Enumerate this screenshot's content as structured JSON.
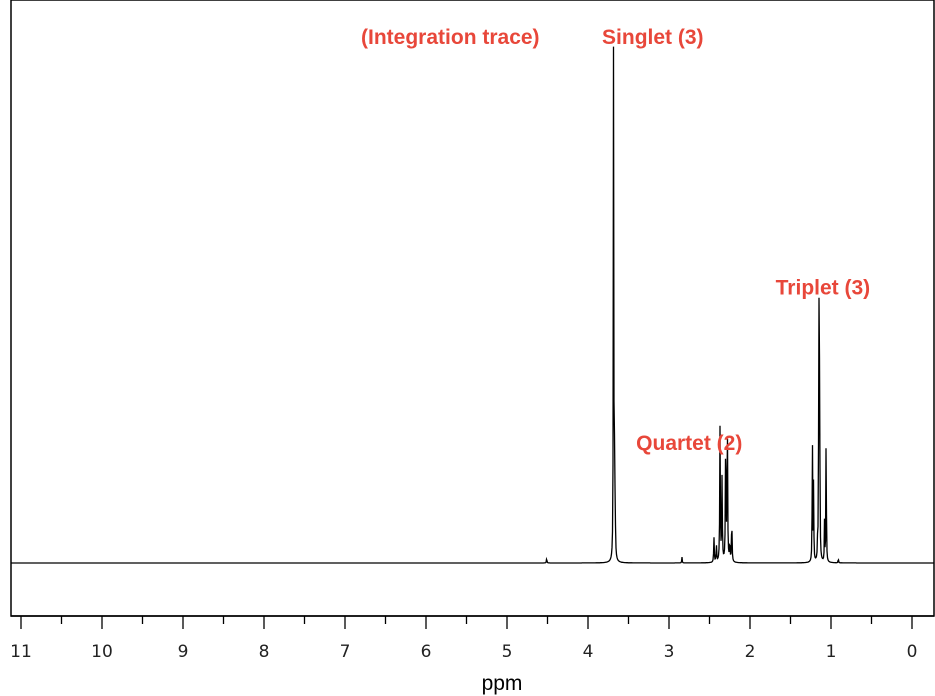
{
  "chart_data": {
    "type": "line",
    "xlabel": "ppm",
    "xlim": [
      11,
      0
    ],
    "x_reversed": true,
    "ticks": [
      11,
      10,
      9,
      8,
      7,
      6,
      5,
      4,
      3,
      2,
      1,
      0
    ],
    "tick_labels": [
      "11",
      "10",
      "9",
      "8",
      "7",
      "6",
      "5",
      "4",
      "3",
      "2",
      "1",
      "0"
    ],
    "minor_tick_step": 0.5,
    "ylim": [
      0,
      1
    ],
    "grid": false,
    "annotation_color": "#e8473a",
    "annotations": [
      {
        "text": "(Integration trace)",
        "x": 5.7,
        "y": 1.05
      },
      {
        "text": "Singlet (3)",
        "x": 3.2,
        "y": 1.05
      },
      {
        "text": "Triplet (3)",
        "x": 1.1,
        "y": 0.55
      },
      {
        "text": "Quartet (2)",
        "x": 2.75,
        "y": 0.24
      }
    ],
    "peaks": [
      {
        "x": 3.685,
        "y": 1.0,
        "w": 0.003
      },
      {
        "x": 3.675,
        "y": 0.23,
        "w": 0.004
      },
      {
        "x": 3.665,
        "y": 0.1,
        "w": 0.004
      },
      {
        "x": 4.51,
        "y": 0.012,
        "w": 0.003
      },
      {
        "x": 2.84,
        "y": 0.012,
        "w": 0.003
      },
      {
        "x": 2.445,
        "y": 0.05,
        "w": 0.004
      },
      {
        "x": 2.415,
        "y": 0.035,
        "w": 0.004
      },
      {
        "x": 2.37,
        "y": 0.27,
        "w": 0.004
      },
      {
        "x": 2.345,
        "y": 0.17,
        "w": 0.004
      },
      {
        "x": 2.3,
        "y": 0.27,
        "w": 0.004
      },
      {
        "x": 2.28,
        "y": 0.31,
        "w": 0.004
      },
      {
        "x": 2.25,
        "y": 0.04,
        "w": 0.004
      },
      {
        "x": 2.225,
        "y": 0.09,
        "w": 0.004
      },
      {
        "x": 1.23,
        "y": 0.29,
        "w": 0.003
      },
      {
        "x": 1.215,
        "y": 0.17,
        "w": 0.003
      },
      {
        "x": 1.165,
        "y": 0.04,
        "w": 0.003
      },
      {
        "x": 1.15,
        "y": 0.65,
        "w": 0.003
      },
      {
        "x": 1.14,
        "y": 0.47,
        "w": 0.003
      },
      {
        "x": 1.08,
        "y": 0.08,
        "w": 0.003
      },
      {
        "x": 1.06,
        "y": 0.3,
        "w": 0.003
      },
      {
        "x": 0.91,
        "y": 0.01,
        "w": 0.003
      }
    ]
  }
}
